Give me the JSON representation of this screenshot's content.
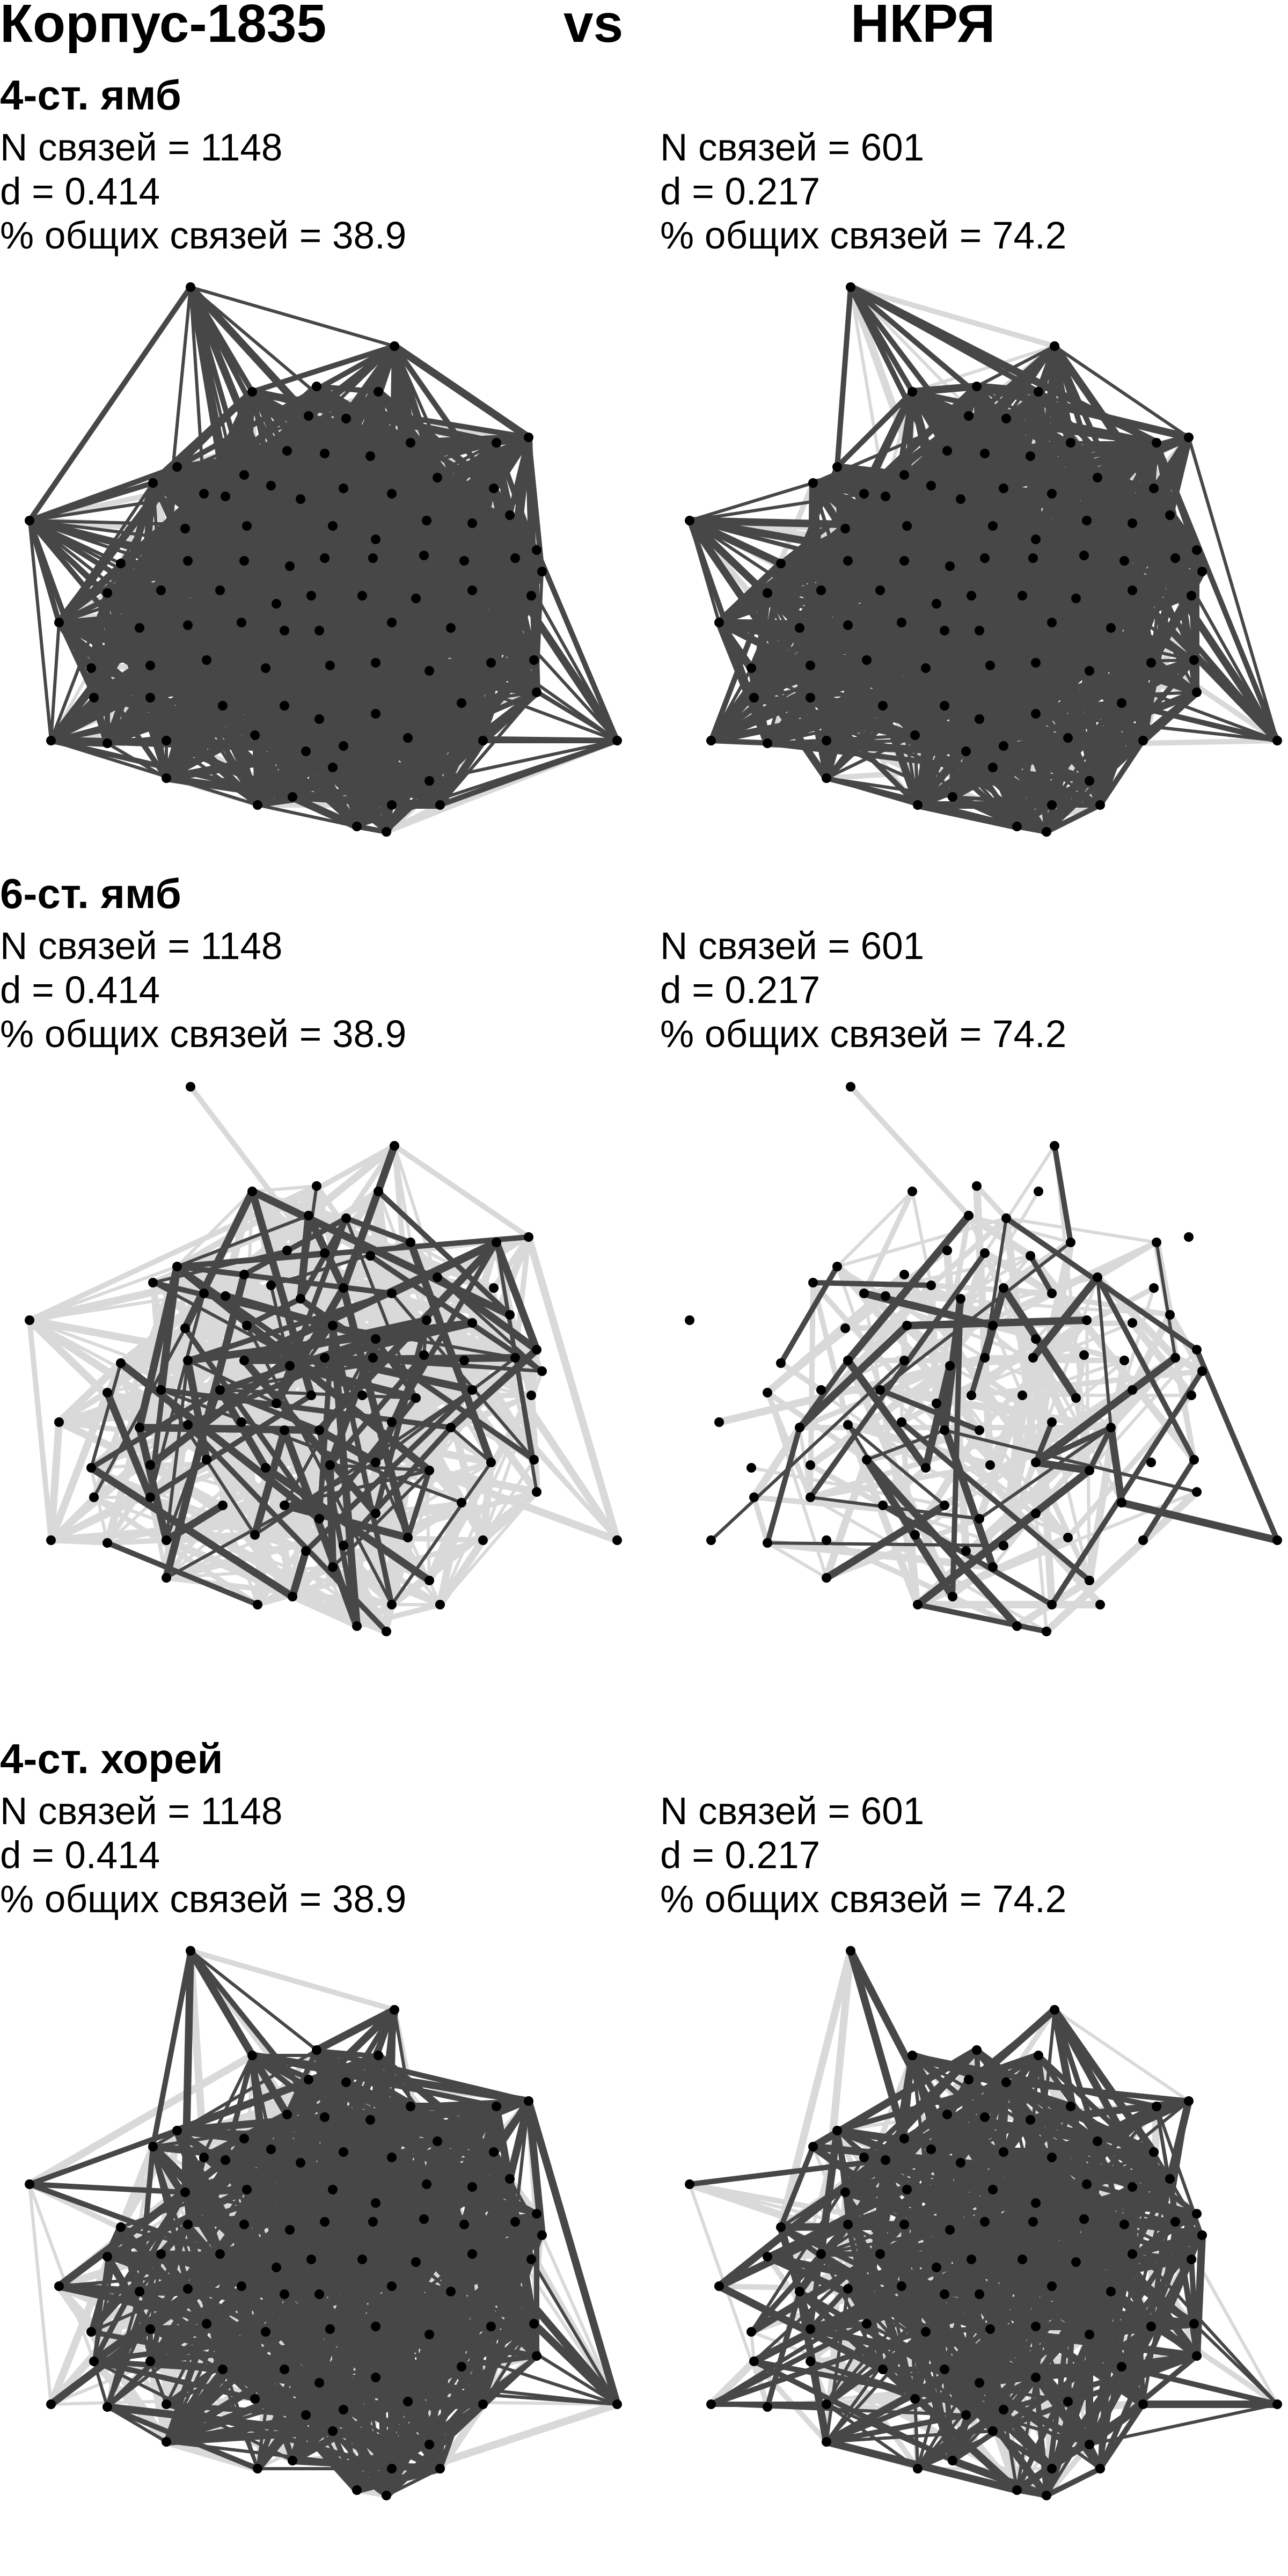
{
  "header": {
    "left": "Корпус-1835",
    "middle": "vs",
    "right": "НКРЯ"
  },
  "panels": [
    {
      "title": "4-ст. ямб",
      "left": {
        "n_links": "N связей = 1148",
        "density": "d = 0.414",
        "shared": "% общих связей = 38.9"
      },
      "right": {
        "n_links": "N связей = 601",
        "density": "d = 0.217",
        "shared": "% общих связей = 74.2"
      },
      "style": {
        "seed": 11,
        "dark_left": 0.55,
        "light_left": 0.12,
        "dark_right": 0.4,
        "light_right": 0.06
      }
    },
    {
      "title": "6-ст. ямб",
      "left": {
        "n_links": "N связей = 1148",
        "density": "d = 0.414",
        "shared": "% общих связей = 38.9"
      },
      "right": {
        "n_links": "N связей = 601",
        "density": "d = 0.217",
        "shared": "% общих связей = 74.2"
      },
      "style": {
        "seed": 23,
        "dark_left": 0.04,
        "light_left": 0.22,
        "dark_right": 0.02,
        "light_right": 0.06
      }
    },
    {
      "title": "4-ст. хорей",
      "left": {
        "n_links": "N связей = 1148",
        "density": "d = 0.414",
        "shared": "% общих связей = 38.9"
      },
      "right": {
        "n_links": "N связей = 601",
        "density": "d = 0.217",
        "shared": "% общих связей = 74.2"
      },
      "style": {
        "seed": 37,
        "dark_left": 0.22,
        "light_left": 0.16,
        "dark_right": 0.16,
        "light_right": 0.08
      }
    }
  ],
  "colors": {
    "node": "#000000",
    "edge_dark": "#474747",
    "edge_light": "#d9d9d9"
  }
}
